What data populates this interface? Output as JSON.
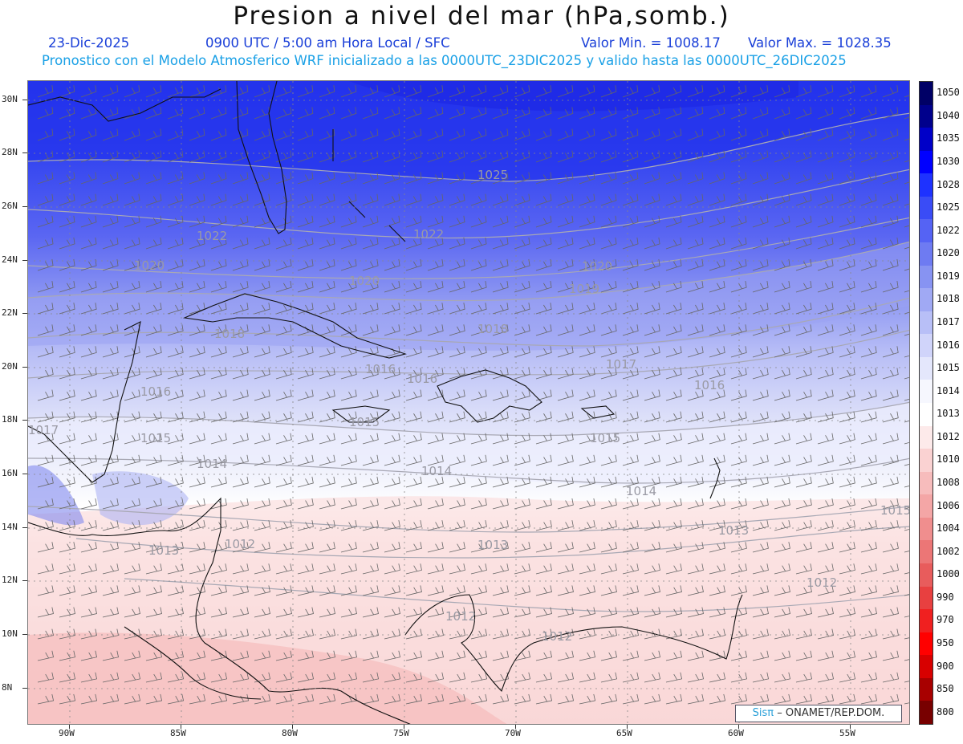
{
  "header": {
    "title": "Presion a nivel del mar (hPa,somb.)",
    "date": "23-Dic-2025",
    "time": "0900 UTC / 5:00 am Hora Local / SFC",
    "min": "Valor Min. = 1008.17",
    "max": "Valor Max. = 1028.35",
    "forecast": "Pronostico con el Modelo Atmosferico WRF inicializado a las 0000UTC_23DIC2025 y valido hasta las  0000UTC_26DIC2025"
  },
  "map": {
    "lat_labels": [
      "30N",
      "28N",
      "26N",
      "24N",
      "22N",
      "20N",
      "18N",
      "16N",
      "14N",
      "12N",
      "10N",
      "8N"
    ],
    "lon_labels": [
      "90W",
      "85W",
      "80W",
      "75W",
      "70W",
      "65W",
      "60W",
      "55W"
    ],
    "isobar_labels": [
      "1025",
      "1022",
      "1022",
      "1020",
      "1020",
      "1020",
      "1019",
      "1018",
      "1018",
      "1017",
      "1017",
      "1016",
      "1016",
      "1016",
      "1016",
      "1015",
      "1015",
      "1015",
      "1015",
      "1014",
      "1014",
      "1014",
      "1013",
      "1013",
      "1013",
      "1012",
      "1012",
      "1012",
      "1012"
    ],
    "colors": {
      "high": "#2030ea",
      "mid": "#8a96f0",
      "low": "#e8eafc",
      "neutral": "#ffffff",
      "pink": "#fbd8d8",
      "red": "#f4a8a8"
    }
  },
  "colorbar": {
    "levels": [
      "1050",
      "1040",
      "1035",
      "1030",
      "1028",
      "1025",
      "1022",
      "1020",
      "1019",
      "1018",
      "1017",
      "1016",
      "1015",
      "1014",
      "1013",
      "1012",
      "1010",
      "1008",
      "1006",
      "1004",
      "1002",
      "1000",
      "990",
      "970",
      "950",
      "900",
      "850",
      "800"
    ],
    "colors": [
      "#000066",
      "#00008c",
      "#0000c8",
      "#0000ff",
      "#1e32ff",
      "#3a4cf6",
      "#5563f4",
      "#6e7bf2",
      "#8793f2",
      "#a0a9f4",
      "#b8bff7",
      "#d0d4fa",
      "#e4e7fc",
      "#f6f7fe",
      "#ffffff",
      "#fdeaea",
      "#fad2d2",
      "#f7bcbc",
      "#f4a6a6",
      "#f08e8e",
      "#ec7676",
      "#e85c5c",
      "#e84040",
      "#f02020",
      "#ff0000",
      "#d80000",
      "#a80000",
      "#780000"
    ]
  },
  "credit": {
    "brand": "Sisπ",
    "text": "– ONAMET/REP.DOM."
  }
}
